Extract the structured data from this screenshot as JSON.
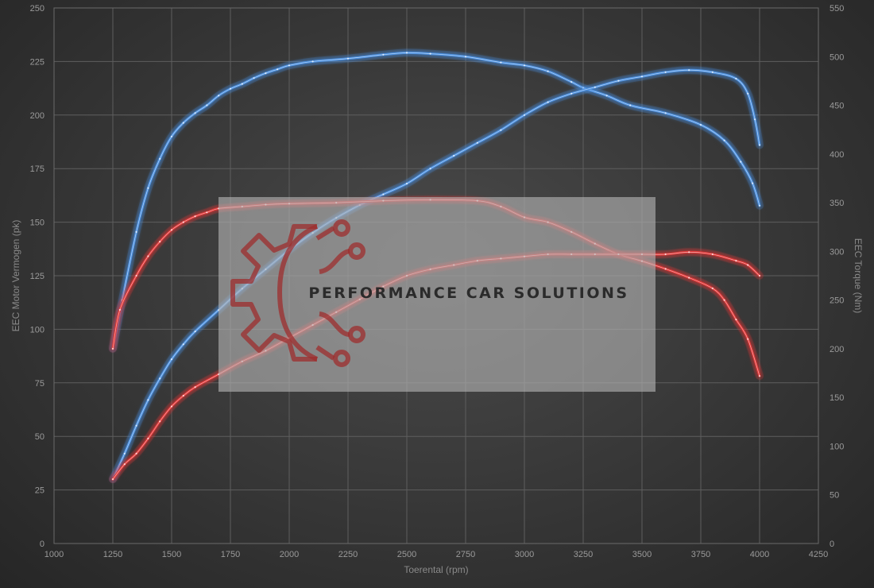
{
  "chart_data": {
    "type": "line",
    "xlabel": "Toerental (rpm)",
    "ylabel_left": "EEC Motor Vermogen (pk)",
    "ylabel_right": "EEC Torque (Nm)",
    "xlim": [
      1000,
      4250
    ],
    "ylim_left": [
      0,
      250
    ],
    "ylim_right": [
      0,
      550
    ],
    "x_ticks": [
      1000,
      1250,
      1500,
      1750,
      2000,
      2250,
      2500,
      2750,
      3000,
      3250,
      3500,
      3750,
      4000,
      4250
    ],
    "y_ticks_left": [
      0,
      25,
      50,
      75,
      100,
      125,
      150,
      175,
      200,
      225,
      250
    ],
    "y_ticks_right": [
      0,
      50,
      100,
      150,
      200,
      250,
      300,
      350,
      400,
      450,
      500,
      550
    ],
    "grid": true,
    "series": [
      {
        "axis": "right",
        "color": "#4a8fe0",
        "points": [
          [
            1250,
            200
          ],
          [
            1290,
            250
          ],
          [
            1350,
            320
          ],
          [
            1400,
            365
          ],
          [
            1450,
            395
          ],
          [
            1500,
            418
          ],
          [
            1550,
            432
          ],
          [
            1600,
            442
          ],
          [
            1650,
            450
          ],
          [
            1700,
            460
          ],
          [
            1750,
            467
          ],
          [
            1800,
            472
          ],
          [
            1850,
            478
          ],
          [
            1900,
            483
          ],
          [
            1950,
            487
          ],
          [
            2000,
            491
          ],
          [
            2100,
            495
          ],
          [
            2250,
            498
          ],
          [
            2400,
            502
          ],
          [
            2500,
            504
          ],
          [
            2600,
            503
          ],
          [
            2750,
            500
          ],
          [
            2900,
            494
          ],
          [
            3000,
            491
          ],
          [
            3100,
            485
          ],
          [
            3200,
            474
          ],
          [
            3250,
            468
          ],
          [
            3350,
            460
          ],
          [
            3450,
            450
          ],
          [
            3600,
            442
          ],
          [
            3750,
            430
          ],
          [
            3850,
            414
          ],
          [
            3920,
            392
          ],
          [
            3970,
            370
          ],
          [
            4000,
            347
          ]
        ]
      },
      {
        "axis": "left",
        "color": "#4a8fe0",
        "points": [
          [
            1250,
            30
          ],
          [
            1300,
            42
          ],
          [
            1350,
            55
          ],
          [
            1400,
            67
          ],
          [
            1450,
            77
          ],
          [
            1500,
            86
          ],
          [
            1550,
            93
          ],
          [
            1600,
            99
          ],
          [
            1700,
            109
          ],
          [
            1800,
            119
          ],
          [
            1900,
            128
          ],
          [
            2000,
            137
          ],
          [
            2100,
            145
          ],
          [
            2200,
            152
          ],
          [
            2300,
            158
          ],
          [
            2400,
            163
          ],
          [
            2500,
            168
          ],
          [
            2600,
            175
          ],
          [
            2700,
            181
          ],
          [
            2800,
            187
          ],
          [
            2900,
            193
          ],
          [
            3000,
            200
          ],
          [
            3100,
            206
          ],
          [
            3200,
            210
          ],
          [
            3300,
            213
          ],
          [
            3400,
            216
          ],
          [
            3500,
            218
          ],
          [
            3600,
            220
          ],
          [
            3700,
            221
          ],
          [
            3800,
            220
          ],
          [
            3900,
            217
          ],
          [
            3950,
            210
          ],
          [
            3980,
            198
          ],
          [
            4000,
            186
          ]
        ]
      },
      {
        "axis": "right",
        "color": "#e03535",
        "points": [
          [
            1250,
            200
          ],
          [
            1280,
            240
          ],
          [
            1350,
            275
          ],
          [
            1400,
            295
          ],
          [
            1450,
            310
          ],
          [
            1500,
            322
          ],
          [
            1550,
            330
          ],
          [
            1600,
            336
          ],
          [
            1650,
            340
          ],
          [
            1700,
            344
          ],
          [
            1800,
            346
          ],
          [
            1900,
            348
          ],
          [
            2000,
            349
          ],
          [
            2200,
            350
          ],
          [
            2400,
            352
          ],
          [
            2600,
            353
          ],
          [
            2800,
            352
          ],
          [
            2900,
            346
          ],
          [
            3000,
            335
          ],
          [
            3100,
            330
          ],
          [
            3200,
            320
          ],
          [
            3300,
            308
          ],
          [
            3400,
            297
          ],
          [
            3500,
            290
          ],
          [
            3600,
            282
          ],
          [
            3700,
            273
          ],
          [
            3800,
            262
          ],
          [
            3850,
            250
          ],
          [
            3900,
            230
          ],
          [
            3950,
            210
          ],
          [
            4000,
            172
          ]
        ]
      },
      {
        "axis": "left",
        "color": "#e03535",
        "points": [
          [
            1250,
            30
          ],
          [
            1300,
            37
          ],
          [
            1350,
            42
          ],
          [
            1400,
            49
          ],
          [
            1450,
            57
          ],
          [
            1500,
            64
          ],
          [
            1550,
            69
          ],
          [
            1600,
            73
          ],
          [
            1700,
            79
          ],
          [
            1800,
            85
          ],
          [
            1900,
            90
          ],
          [
            2000,
            96
          ],
          [
            2100,
            102
          ],
          [
            2200,
            108
          ],
          [
            2300,
            114
          ],
          [
            2400,
            120
          ],
          [
            2500,
            125
          ],
          [
            2600,
            128
          ],
          [
            2700,
            130
          ],
          [
            2800,
            132
          ],
          [
            2900,
            133
          ],
          [
            3000,
            134
          ],
          [
            3100,
            135
          ],
          [
            3200,
            135
          ],
          [
            3300,
            135
          ],
          [
            3400,
            135
          ],
          [
            3500,
            135
          ],
          [
            3600,
            135
          ],
          [
            3700,
            136
          ],
          [
            3800,
            135
          ],
          [
            3900,
            132
          ],
          [
            3950,
            130
          ],
          [
            4000,
            125
          ]
        ]
      }
    ]
  },
  "watermark": {
    "text": "PERFORMANCE CAR SOLUTIONS",
    "color": "#9e2d2d"
  }
}
